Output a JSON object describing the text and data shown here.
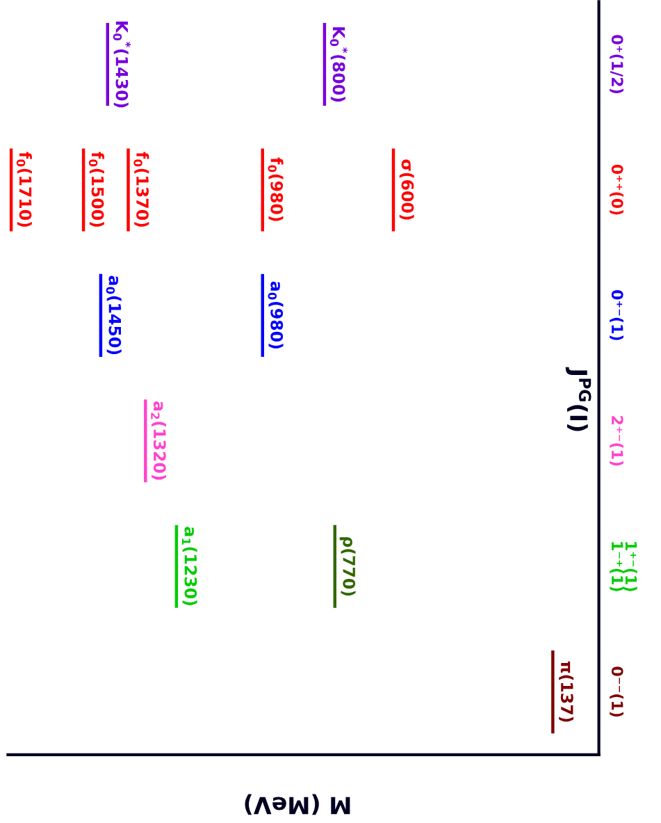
{
  "chart_data": {
    "type": "other",
    "xlabel": "M (MeV)",
    "ylabel": "J$^{PG}$(I)",
    "categories": [
      "0⁻⁻(1)",
      "1⁺⁻(1)\n1⁻⁺(1)",
      "2⁺⁻(1)",
      "0⁺⁻(1)",
      "0⁺⁺(0)",
      "0⁺(1/2)"
    ],
    "series": [
      {
        "values": [
          137,
          1230,
          1320,
          1450,
          1710,
          1430
        ],
        "value_labels": [
          "π(137)",
          "a$_{1}$(1230)",
          "a$_{2}$(1320)",
          "a$_{0}$(1450)",
          "f$_{0}$(1710)",
          "K$_{0}$$^{*}$(1430)"
        ],
        "colors": [
          "#800000",
          "#00cc00",
          "#ff44cc",
          "#0000ff",
          "#ff0000",
          "#7700dd"
        ]
      },
      {
        "values": [
          null,
          770,
          null,
          980,
          1500,
          800
        ],
        "value_labels": [
          null,
          "ρ(770)",
          null,
          "a$_{0}$(980)",
          "f$_{0}$(1500)",
          "K$_{0}$$^{*}$(800)"
        ],
        "colors": [
          null,
          "#336600",
          null,
          "#0000ff",
          "#ff0000",
          "#7700dd"
        ]
      },
      {
        "values": [
          null,
          null,
          null,
          null,
          1370,
          null
        ],
        "value_labels": [
          null,
          null,
          null,
          null,
          "f$_{0}$(1370)",
          null
        ],
        "colors": [
          null,
          null,
          null,
          null,
          "#ff0000",
          null
        ]
      },
      {
        "values": [
          null,
          null,
          null,
          null,
          980,
          null
        ],
        "value_labels": [
          null,
          null,
          null,
          null,
          "f$_{0}$(980)",
          null
        ],
        "colors": [
          null,
          null,
          null,
          null,
          "#ff0000",
          null
        ]
      },
      {
        "values": [
          null,
          null,
          null,
          null,
          600,
          null
        ],
        "value_labels": [
          null,
          null,
          null,
          null,
          "σ(600)",
          null
        ],
        "colors": [
          null,
          null,
          null,
          null,
          "#ff0000",
          null
        ]
      }
    ]
  }
}
